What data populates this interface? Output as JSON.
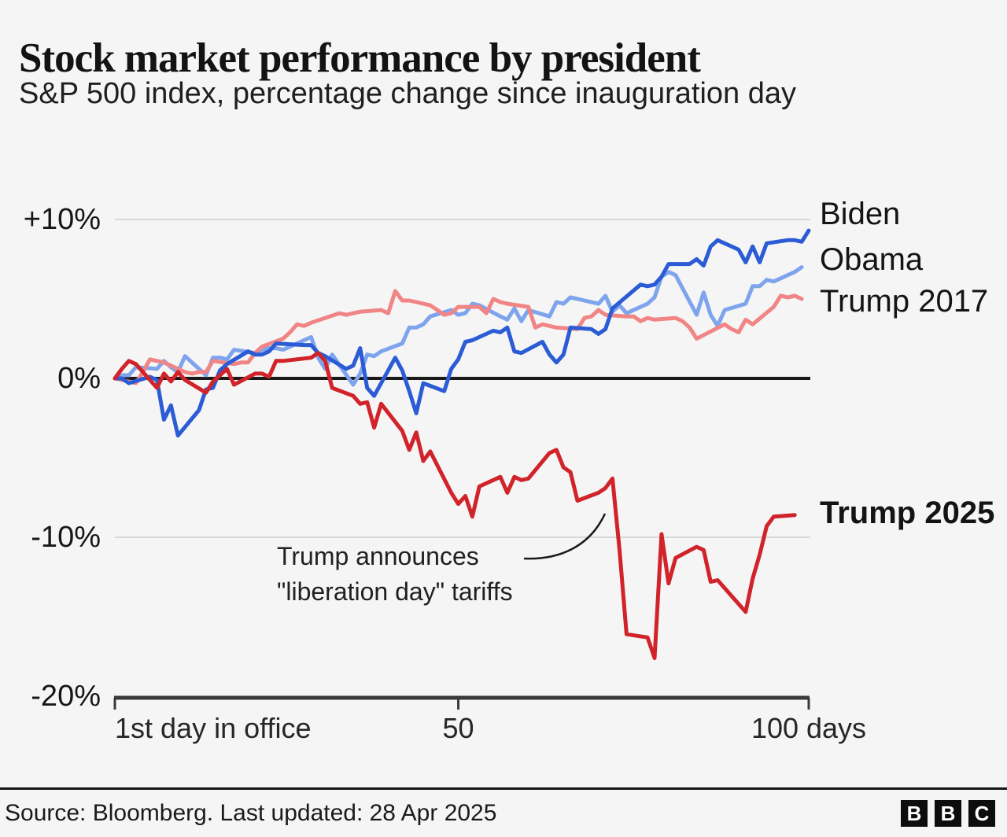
{
  "chart_data": {
    "type": "line",
    "title": "Stock market performance by president",
    "subtitle": "S&P 500 index, percentage change since inauguration day",
    "x_axis": {
      "unit": "days in office",
      "range": [
        1,
        100
      ],
      "ticks": [
        {
          "day": 1,
          "label": "1st day in office",
          "align": "left"
        },
        {
          "day": 50,
          "label": "50",
          "align": "center"
        },
        {
          "day": 100,
          "label": "100 days",
          "align": "center"
        }
      ]
    },
    "y_axis": {
      "unit": "%",
      "range": [
        -20,
        10
      ],
      "ticks": [
        {
          "value": 10,
          "label": "+10%"
        },
        {
          "value": 0,
          "label": "0%"
        },
        {
          "value": -10,
          "label": "-10%"
        },
        {
          "value": -20,
          "label": "-20%"
        }
      ]
    },
    "annotation": {
      "line1": "Trump announces",
      "line2": "\"liberation day\" tariffs"
    },
    "colors": {
      "background": "#f5f5f5",
      "grid": "#d8d8d8",
      "zero_line": "#1a1a1a",
      "axis": "#3a3a3a",
      "pointer": "#1a1a1a"
    },
    "series": [
      {
        "name": "Biden",
        "color": "#2b5cd6",
        "bold_label": false,
        "points": [
          [
            1,
            0
          ],
          [
            2,
            0
          ],
          [
            3,
            -0.3
          ],
          [
            6,
            0.1
          ],
          [
            7,
            -0.1
          ],
          [
            8,
            -2.6
          ],
          [
            9,
            -1.7
          ],
          [
            10,
            -3.6
          ],
          [
            13,
            -2
          ],
          [
            14,
            -0.7
          ],
          [
            15,
            -0.6
          ],
          [
            16,
            0.5
          ],
          [
            17,
            0.9
          ],
          [
            20,
            1.7
          ],
          [
            21,
            1.5
          ],
          [
            22,
            1.5
          ],
          [
            23,
            1.7
          ],
          [
            24,
            2.2
          ],
          [
            28,
            2.1
          ],
          [
            29,
            2.1
          ],
          [
            30,
            1.6
          ],
          [
            31,
            1.4
          ],
          [
            34,
            0.6
          ],
          [
            35,
            0.8
          ],
          [
            36,
            1.9
          ],
          [
            37,
            -0.6
          ],
          [
            38,
            -1.1
          ],
          [
            41,
            1.3
          ],
          [
            42,
            0.5
          ],
          [
            43,
            -0.8
          ],
          [
            44,
            -2.2
          ],
          [
            45,
            -0.3
          ],
          [
            48,
            -0.8
          ],
          [
            49,
            0.6
          ],
          [
            50,
            1.2
          ],
          [
            51,
            2.3
          ],
          [
            52,
            2.4
          ],
          [
            55,
            3
          ],
          [
            56,
            2.9
          ],
          [
            57,
            3.2
          ],
          [
            58,
            1.7
          ],
          [
            59,
            1.6
          ],
          [
            62,
            2.3
          ],
          [
            63,
            1.5
          ],
          [
            64,
            1
          ],
          [
            65,
            1.5
          ],
          [
            66,
            3.2
          ],
          [
            69,
            3.1
          ],
          [
            70,
            2.8
          ],
          [
            71,
            3.1
          ],
          [
            72,
            4.4
          ],
          [
            76,
            5.9
          ],
          [
            77,
            5.8
          ],
          [
            78,
            5.9
          ],
          [
            79,
            6.4
          ],
          [
            80,
            7.2
          ],
          [
            83,
            7.2
          ],
          [
            84,
            7.5
          ],
          [
            85,
            7.1
          ],
          [
            86,
            8.3
          ],
          [
            87,
            8.7
          ],
          [
            90,
            8.1
          ],
          [
            91,
            7.3
          ],
          [
            92,
            8.3
          ],
          [
            93,
            7.3
          ],
          [
            94,
            8.5
          ],
          [
            97,
            8.7
          ],
          [
            98,
            8.7
          ],
          [
            99,
            8.6
          ],
          [
            100,
            9.3
          ]
        ]
      },
      {
        "name": "Obama",
        "color": "#7ea4ed",
        "bold_label": false,
        "points": [
          [
            1,
            0
          ],
          [
            2,
            0.2
          ],
          [
            3,
            0.2
          ],
          [
            4,
            0.7
          ],
          [
            7,
            0.6
          ],
          [
            8,
            1.1
          ],
          [
            9,
            0.7
          ],
          [
            10,
            0.4
          ],
          [
            11,
            1.4
          ],
          [
            14,
            0.2
          ],
          [
            15,
            1.3
          ],
          [
            16,
            1.3
          ],
          [
            17,
            1.2
          ],
          [
            18,
            1.8
          ],
          [
            21,
            1.6
          ],
          [
            22,
            1.8
          ],
          [
            23,
            1.9
          ],
          [
            24,
            1.9
          ],
          [
            25,
            1.8
          ],
          [
            29,
            2.6
          ],
          [
            30,
            1.3
          ],
          [
            31,
            0.6
          ],
          [
            32,
            1.5
          ],
          [
            35,
            -0.4
          ],
          [
            36,
            0.3
          ],
          [
            37,
            1.5
          ],
          [
            38,
            1.4
          ],
          [
            39,
            1.7
          ],
          [
            42,
            2.2
          ],
          [
            43,
            3.2
          ],
          [
            44,
            3.2
          ],
          [
            45,
            3.4
          ],
          [
            46,
            3.9
          ],
          [
            49,
            4.3
          ],
          [
            50,
            4
          ],
          [
            51,
            4.1
          ],
          [
            52,
            4.7
          ],
          [
            53,
            4.6
          ],
          [
            56,
            3.9
          ],
          [
            57,
            3.7
          ],
          [
            58,
            4.4
          ],
          [
            59,
            3.6
          ],
          [
            60,
            4.3
          ],
          [
            63,
            3.9
          ],
          [
            64,
            4.8
          ],
          [
            65,
            4.7
          ],
          [
            66,
            5.1
          ],
          [
            70,
            4.7
          ],
          [
            71,
            5.2
          ],
          [
            72,
            4.2
          ],
          [
            73,
            4.6
          ],
          [
            74,
            4.1
          ],
          [
            77,
            4.7
          ],
          [
            78,
            5.1
          ],
          [
            79,
            6.4
          ],
          [
            80,
            6.7
          ],
          [
            81,
            6.5
          ],
          [
            84,
            4
          ],
          [
            85,
            5.4
          ],
          [
            86,
            4
          ],
          [
            87,
            3.3
          ],
          [
            88,
            4.3
          ],
          [
            91,
            4.7
          ],
          [
            92,
            5.8
          ],
          [
            93,
            5.8
          ],
          [
            94,
            6.2
          ],
          [
            95,
            6.1
          ],
          [
            98,
            6.7
          ],
          [
            99,
            7
          ]
        ]
      },
      {
        "name": "Trump 2017",
        "color": "#f18585",
        "bold_label": false,
        "points": [
          [
            1,
            0
          ],
          [
            4,
            -0.3
          ],
          [
            5,
            0.4
          ],
          [
            6,
            1.2
          ],
          [
            7,
            1.1
          ],
          [
            8,
            1
          ],
          [
            11,
            0.4
          ],
          [
            12,
            0.3
          ],
          [
            13,
            0.4
          ],
          [
            14,
            0.4
          ],
          [
            15,
            1.1
          ],
          [
            18,
            0.9
          ],
          [
            19,
            1
          ],
          [
            20,
            1
          ],
          [
            21,
            1.6
          ],
          [
            22,
            2
          ],
          [
            25,
            2.5
          ],
          [
            26,
            2.9
          ],
          [
            27,
            3.4
          ],
          [
            28,
            3.3
          ],
          [
            29,
            3.5
          ],
          [
            33,
            4.1
          ],
          [
            34,
            4
          ],
          [
            35,
            4.1
          ],
          [
            36,
            4.2
          ],
          [
            39,
            4.3
          ],
          [
            40,
            4.1
          ],
          [
            41,
            5.5
          ],
          [
            42,
            4.9
          ],
          [
            43,
            4.9
          ],
          [
            46,
            4.6
          ],
          [
            47,
            4.3
          ],
          [
            48,
            4
          ],
          [
            49,
            4.1
          ],
          [
            50,
            4.5
          ],
          [
            53,
            4.5
          ],
          [
            54,
            4.1
          ],
          [
            55,
            5
          ],
          [
            56,
            4.8
          ],
          [
            57,
            4.7
          ],
          [
            60,
            4.5
          ],
          [
            61,
            3.2
          ],
          [
            62,
            3.4
          ],
          [
            63,
            3.3
          ],
          [
            64,
            3.2
          ],
          [
            67,
            3.1
          ],
          [
            68,
            3.8
          ],
          [
            69,
            3.9
          ],
          [
            70,
            4.3
          ],
          [
            71,
            4
          ],
          [
            74,
            3.9
          ],
          [
            75,
            3.9
          ],
          [
            76,
            3.6
          ],
          [
            77,
            3.8
          ],
          [
            78,
            3.7
          ],
          [
            81,
            3.8
          ],
          [
            82,
            3.6
          ],
          [
            83,
            3.2
          ],
          [
            84,
            2.5
          ],
          [
            88,
            3.4
          ],
          [
            89,
            3.1
          ],
          [
            90,
            2.9
          ],
          [
            91,
            3.7
          ],
          [
            92,
            3.4
          ],
          [
            95,
            4.5
          ],
          [
            96,
            5.2
          ],
          [
            97,
            5.1
          ],
          [
            98,
            5.2
          ],
          [
            99,
            5
          ]
        ]
      },
      {
        "name": "Trump 2025",
        "color": "#d1232a",
        "bold_label": true,
        "points": [
          [
            1,
            0
          ],
          [
            2,
            0.6
          ],
          [
            3,
            1.1
          ],
          [
            4,
            0.9
          ],
          [
            7,
            -0.6
          ],
          [
            8,
            0.3
          ],
          [
            9,
            -0.2
          ],
          [
            10,
            0.4
          ],
          [
            11,
            -0.1
          ],
          [
            14,
            -0.9
          ],
          [
            15,
            -0.2
          ],
          [
            16,
            0.2
          ],
          [
            17,
            0.6
          ],
          [
            18,
            -0.4
          ],
          [
            21,
            0.3
          ],
          [
            22,
            0.3
          ],
          [
            23,
            0.1
          ],
          [
            24,
            1.1
          ],
          [
            25,
            1.1
          ],
          [
            29,
            1.3
          ],
          [
            30,
            1.6
          ],
          [
            31,
            1.1
          ],
          [
            32,
            -0.6
          ],
          [
            35,
            -1.1
          ],
          [
            36,
            -1.6
          ],
          [
            37,
            -1.5
          ],
          [
            38,
            -3.1
          ],
          [
            39,
            -1.6
          ],
          [
            42,
            -3.3
          ],
          [
            43,
            -4.5
          ],
          [
            44,
            -3.4
          ],
          [
            45,
            -5.2
          ],
          [
            46,
            -4.6
          ],
          [
            49,
            -7.2
          ],
          [
            50,
            -7.9
          ],
          [
            51,
            -7.4
          ],
          [
            52,
            -8.7
          ],
          [
            53,
            -6.8
          ],
          [
            56,
            -6.2
          ],
          [
            57,
            -7.2
          ],
          [
            58,
            -6.2
          ],
          [
            59,
            -6.4
          ],
          [
            60,
            -6.3
          ],
          [
            63,
            -4.7
          ],
          [
            64,
            -4.5
          ],
          [
            65,
            -5.6
          ],
          [
            66,
            -5.9
          ],
          [
            67,
            -7.7
          ],
          [
            70,
            -7.2
          ],
          [
            71,
            -6.9
          ],
          [
            72,
            -6.3
          ],
          [
            73,
            -10.8
          ],
          [
            74,
            -16.1
          ],
          [
            77,
            -16.3
          ],
          [
            78,
            -17.6
          ],
          [
            79,
            -9.8
          ],
          [
            80,
            -12.9
          ],
          [
            81,
            -11.3
          ],
          [
            84,
            -10.6
          ],
          [
            85,
            -10.8
          ],
          [
            86,
            -12.8
          ],
          [
            87,
            -12.7
          ],
          [
            91,
            -14.7
          ],
          [
            92,
            -12.6
          ],
          [
            93,
            -11.1
          ],
          [
            94,
            -9.3
          ],
          [
            95,
            -8.7
          ],
          [
            98,
            -8.6
          ]
        ]
      }
    ]
  },
  "footer": {
    "source": "Source: Bloomberg. Last updated: 28 Apr 2025",
    "logo_letters": [
      "B",
      "B",
      "C"
    ]
  }
}
